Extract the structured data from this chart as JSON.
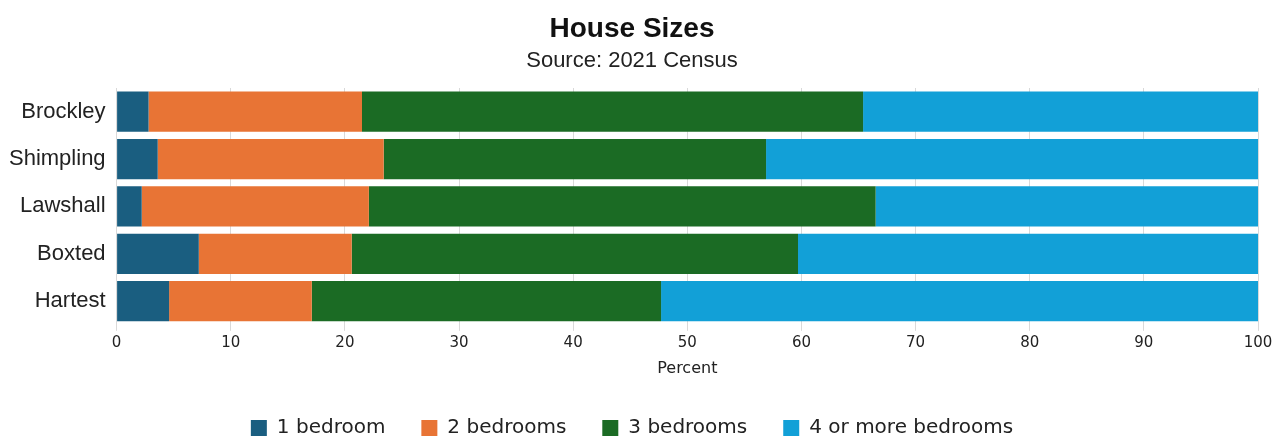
{
  "chart_data": {
    "type": "bar",
    "orientation": "horizontal",
    "stacked": true,
    "title": "House Sizes",
    "subtitle": "Source: 2021 Census",
    "xlabel": "Percent",
    "categories": [
      "Brockley",
      "Shimpling",
      "Lawshall",
      "Boxted",
      "Hartest"
    ],
    "series": [
      {
        "name": "1 bedroom",
        "color": "#1a5e80",
        "values": [
          2.8,
          3.6,
          2.2,
          7.2,
          4.6
        ]
      },
      {
        "name": "2 bedrooms",
        "color": "#e87435",
        "values": [
          18.7,
          19.8,
          19.9,
          13.4,
          12.5
        ]
      },
      {
        "name": "3 bedrooms",
        "color": "#1b6b24",
        "values": [
          43.9,
          33.5,
          44.4,
          39.1,
          30.6
        ]
      },
      {
        "name": "4 or more bedrooms",
        "color": "#12a0d7",
        "values": [
          34.6,
          43.1,
          33.5,
          40.3,
          52.3
        ]
      }
    ],
    "xlim": [
      0,
      100
    ],
    "xticks": [
      0,
      10,
      20,
      30,
      40,
      50,
      60,
      70,
      80,
      90,
      100
    ],
    "grid": "x",
    "legend": "bottom"
  }
}
